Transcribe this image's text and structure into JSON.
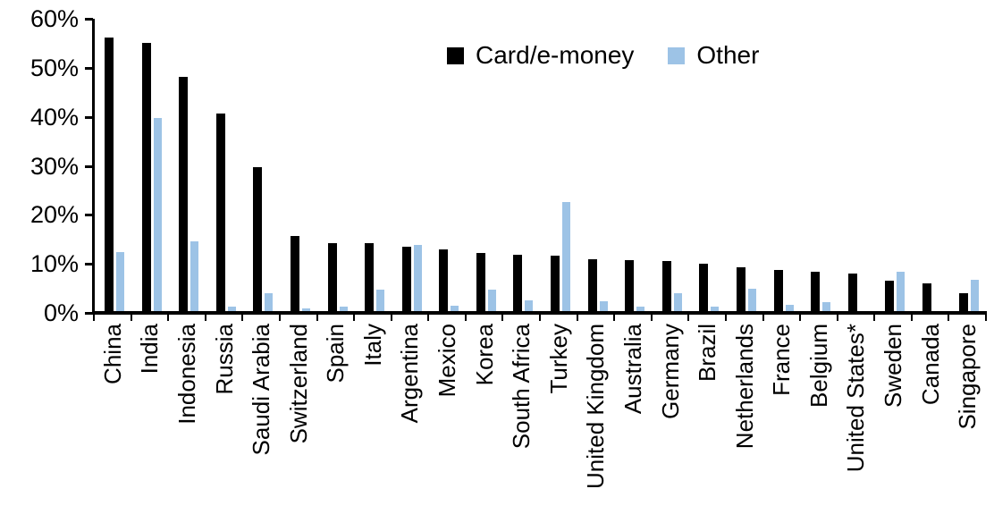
{
  "chart_data": {
    "type": "bar",
    "title": "",
    "xlabel": "",
    "ylabel": "",
    "ylim": [
      0,
      60
    ],
    "grid": false,
    "legend_position": "top-center",
    "y_tick_values": [
      0,
      10,
      20,
      30,
      40,
      50,
      60
    ],
    "y_tick_labels": [
      "0%",
      "10%",
      "20%",
      "30%",
      "40%",
      "50%",
      "60%"
    ],
    "categories": [
      "China",
      "India",
      "Indonesia",
      "Russia",
      "Saudi Arabia",
      "Switzerland",
      "Spain",
      "Italy",
      "Argentina",
      "Mexico",
      "Korea",
      "South Africa",
      "Turkey",
      "United Kingdom",
      "Australia",
      "Germany",
      "Brazil",
      "Netherlands",
      "France",
      "Belgium",
      "United States*",
      "Sweden",
      "Canada",
      "Singapore"
    ],
    "series": [
      {
        "name": "Card/e-money",
        "color": "#000000",
        "values": [
          56.2,
          55.0,
          48.2,
          40.6,
          29.8,
          15.7,
          14.3,
          14.2,
          13.5,
          13.0,
          12.3,
          11.9,
          11.7,
          11.0,
          10.8,
          10.6,
          10.0,
          9.3,
          8.7,
          8.3,
          8.0,
          6.6,
          6.0,
          4.0
        ]
      },
      {
        "name": "Other",
        "color": "#9DC3E6",
        "values": [
          12.4,
          39.8,
          14.6,
          1.2,
          4.1,
          1.0,
          1.2,
          4.7,
          13.9,
          1.5,
          4.7,
          2.5,
          22.6,
          2.4,
          1.2,
          4.0,
          1.3,
          4.9,
          1.6,
          2.1,
          0.2,
          8.3,
          0.0,
          6.8
        ]
      }
    ]
  },
  "colors": {
    "axis": "#000000",
    "background": "#ffffff"
  }
}
